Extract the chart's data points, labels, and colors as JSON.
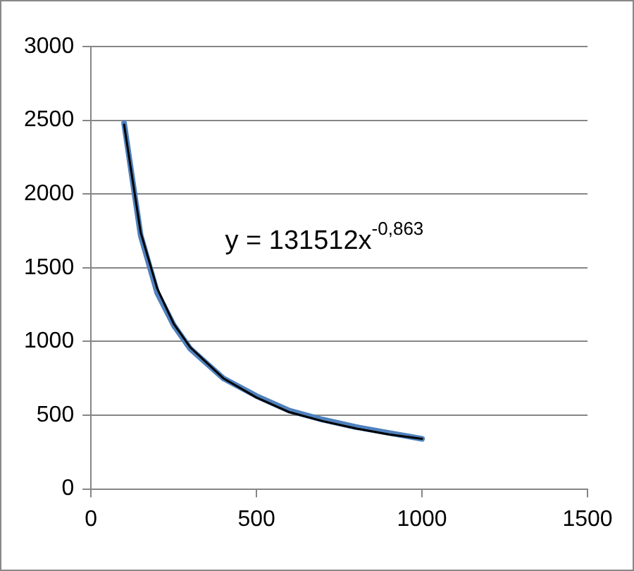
{
  "chart_data": {
    "type": "line",
    "xlim": [
      0,
      1500
    ],
    "xticks": [
      0,
      500,
      1000,
      1500
    ],
    "ylim": [
      0,
      3000
    ],
    "yticks": [
      0,
      500,
      1000,
      1500,
      2000,
      2500,
      3000
    ],
    "grid": "y",
    "marker": "none",
    "line_style": "solid",
    "series": [
      {
        "color": "#4f81bd",
        "x": [
          100,
          150,
          200,
          250,
          300,
          400,
          500,
          600,
          700,
          800,
          900,
          1000
        ],
        "values": [
          2480,
          1720,
          1330,
          1110,
          950,
          750,
          630,
          530,
          470,
          420,
          380,
          340
        ]
      },
      {
        "color": "#000000",
        "x": [
          100,
          150,
          200,
          250,
          300,
          400,
          500,
          600,
          700,
          800,
          900,
          1000
        ],
        "values": [
          2470,
          1740,
          1360,
          1120,
          960,
          750,
          620,
          520,
          460,
          410,
          370,
          340
        ]
      }
    ],
    "annotations": [
      "y = 131512x$^{-0,863}$"
    ]
  }
}
